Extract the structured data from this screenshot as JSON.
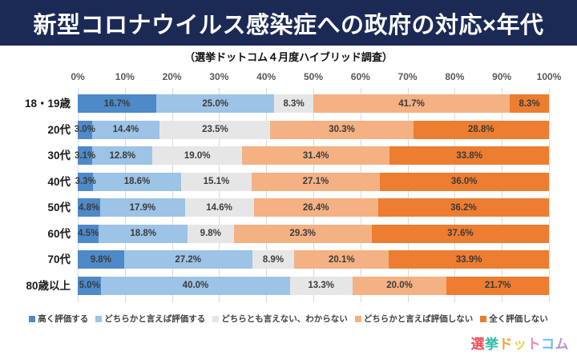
{
  "header": {
    "title": "新型コロナウイルス感染症への政府の対応×年代",
    "bg_color": "#1b2a55"
  },
  "subtitle": "（選挙ドットコム４月度ハイブリッド調査）",
  "chart_data": {
    "type": "bar",
    "stacked": true,
    "orientation": "horizontal",
    "title": "新型コロナウイルス感染症への政府の対応×年代",
    "subtitle": "（選挙ドットコム４月度ハイブリッド調査）",
    "categories": [
      "18・19歳",
      "20代",
      "30代",
      "40代",
      "50代",
      "60代",
      "70代",
      "80歳以上"
    ],
    "series": [
      {
        "name": "高く評価する",
        "color": "#4e89c8",
        "values": [
          16.7,
          3.0,
          3.1,
          3.3,
          4.8,
          4.5,
          9.8,
          5.0
        ]
      },
      {
        "name": "どちらかと言えば評価する",
        "color": "#9dc3e6",
        "values": [
          25.0,
          14.4,
          12.8,
          18.6,
          17.9,
          18.8,
          27.2,
          40.0
        ]
      },
      {
        "name": "どちらとも言えない、わからない",
        "color": "#e7e6e6",
        "values": [
          8.3,
          23.5,
          19.0,
          15.1,
          14.6,
          9.8,
          8.9,
          13.3
        ]
      },
      {
        "name": "どちらかと言えば評価しない",
        "color": "#f4b183",
        "values": [
          41.7,
          30.3,
          31.4,
          27.1,
          26.4,
          29.3,
          20.1,
          20.0
        ]
      },
      {
        "name": "全く評価しない",
        "color": "#ed7d31",
        "values": [
          8.3,
          28.8,
          33.8,
          36.0,
          36.2,
          37.6,
          33.9,
          21.7
        ]
      }
    ],
    "x_ticks": [
      "0%",
      "10%",
      "20%",
      "30%",
      "40%",
      "50%",
      "60%",
      "70%",
      "80%",
      "90%",
      "100%"
    ],
    "xlim": [
      0,
      100
    ],
    "value_suffix": "%",
    "grid": "vertical",
    "gridline_color": "#d9d9d9",
    "legend_position": "bottom"
  },
  "footer": {
    "logo_text": "選挙ドットコム",
    "logo_chars": [
      {
        "ch": "選",
        "color": "#e94f5a"
      },
      {
        "ch": "挙",
        "color": "#2cb9a6"
      },
      {
        "ch": "ド",
        "color": "#f5a03b"
      },
      {
        "ch": "ッ",
        "color": "#f6cd4b"
      },
      {
        "ch": "ト",
        "color": "#f08bb1"
      },
      {
        "ch": "コ",
        "color": "#64c3ee"
      },
      {
        "ch": "ム",
        "color": "#b793d6"
      }
    ]
  }
}
